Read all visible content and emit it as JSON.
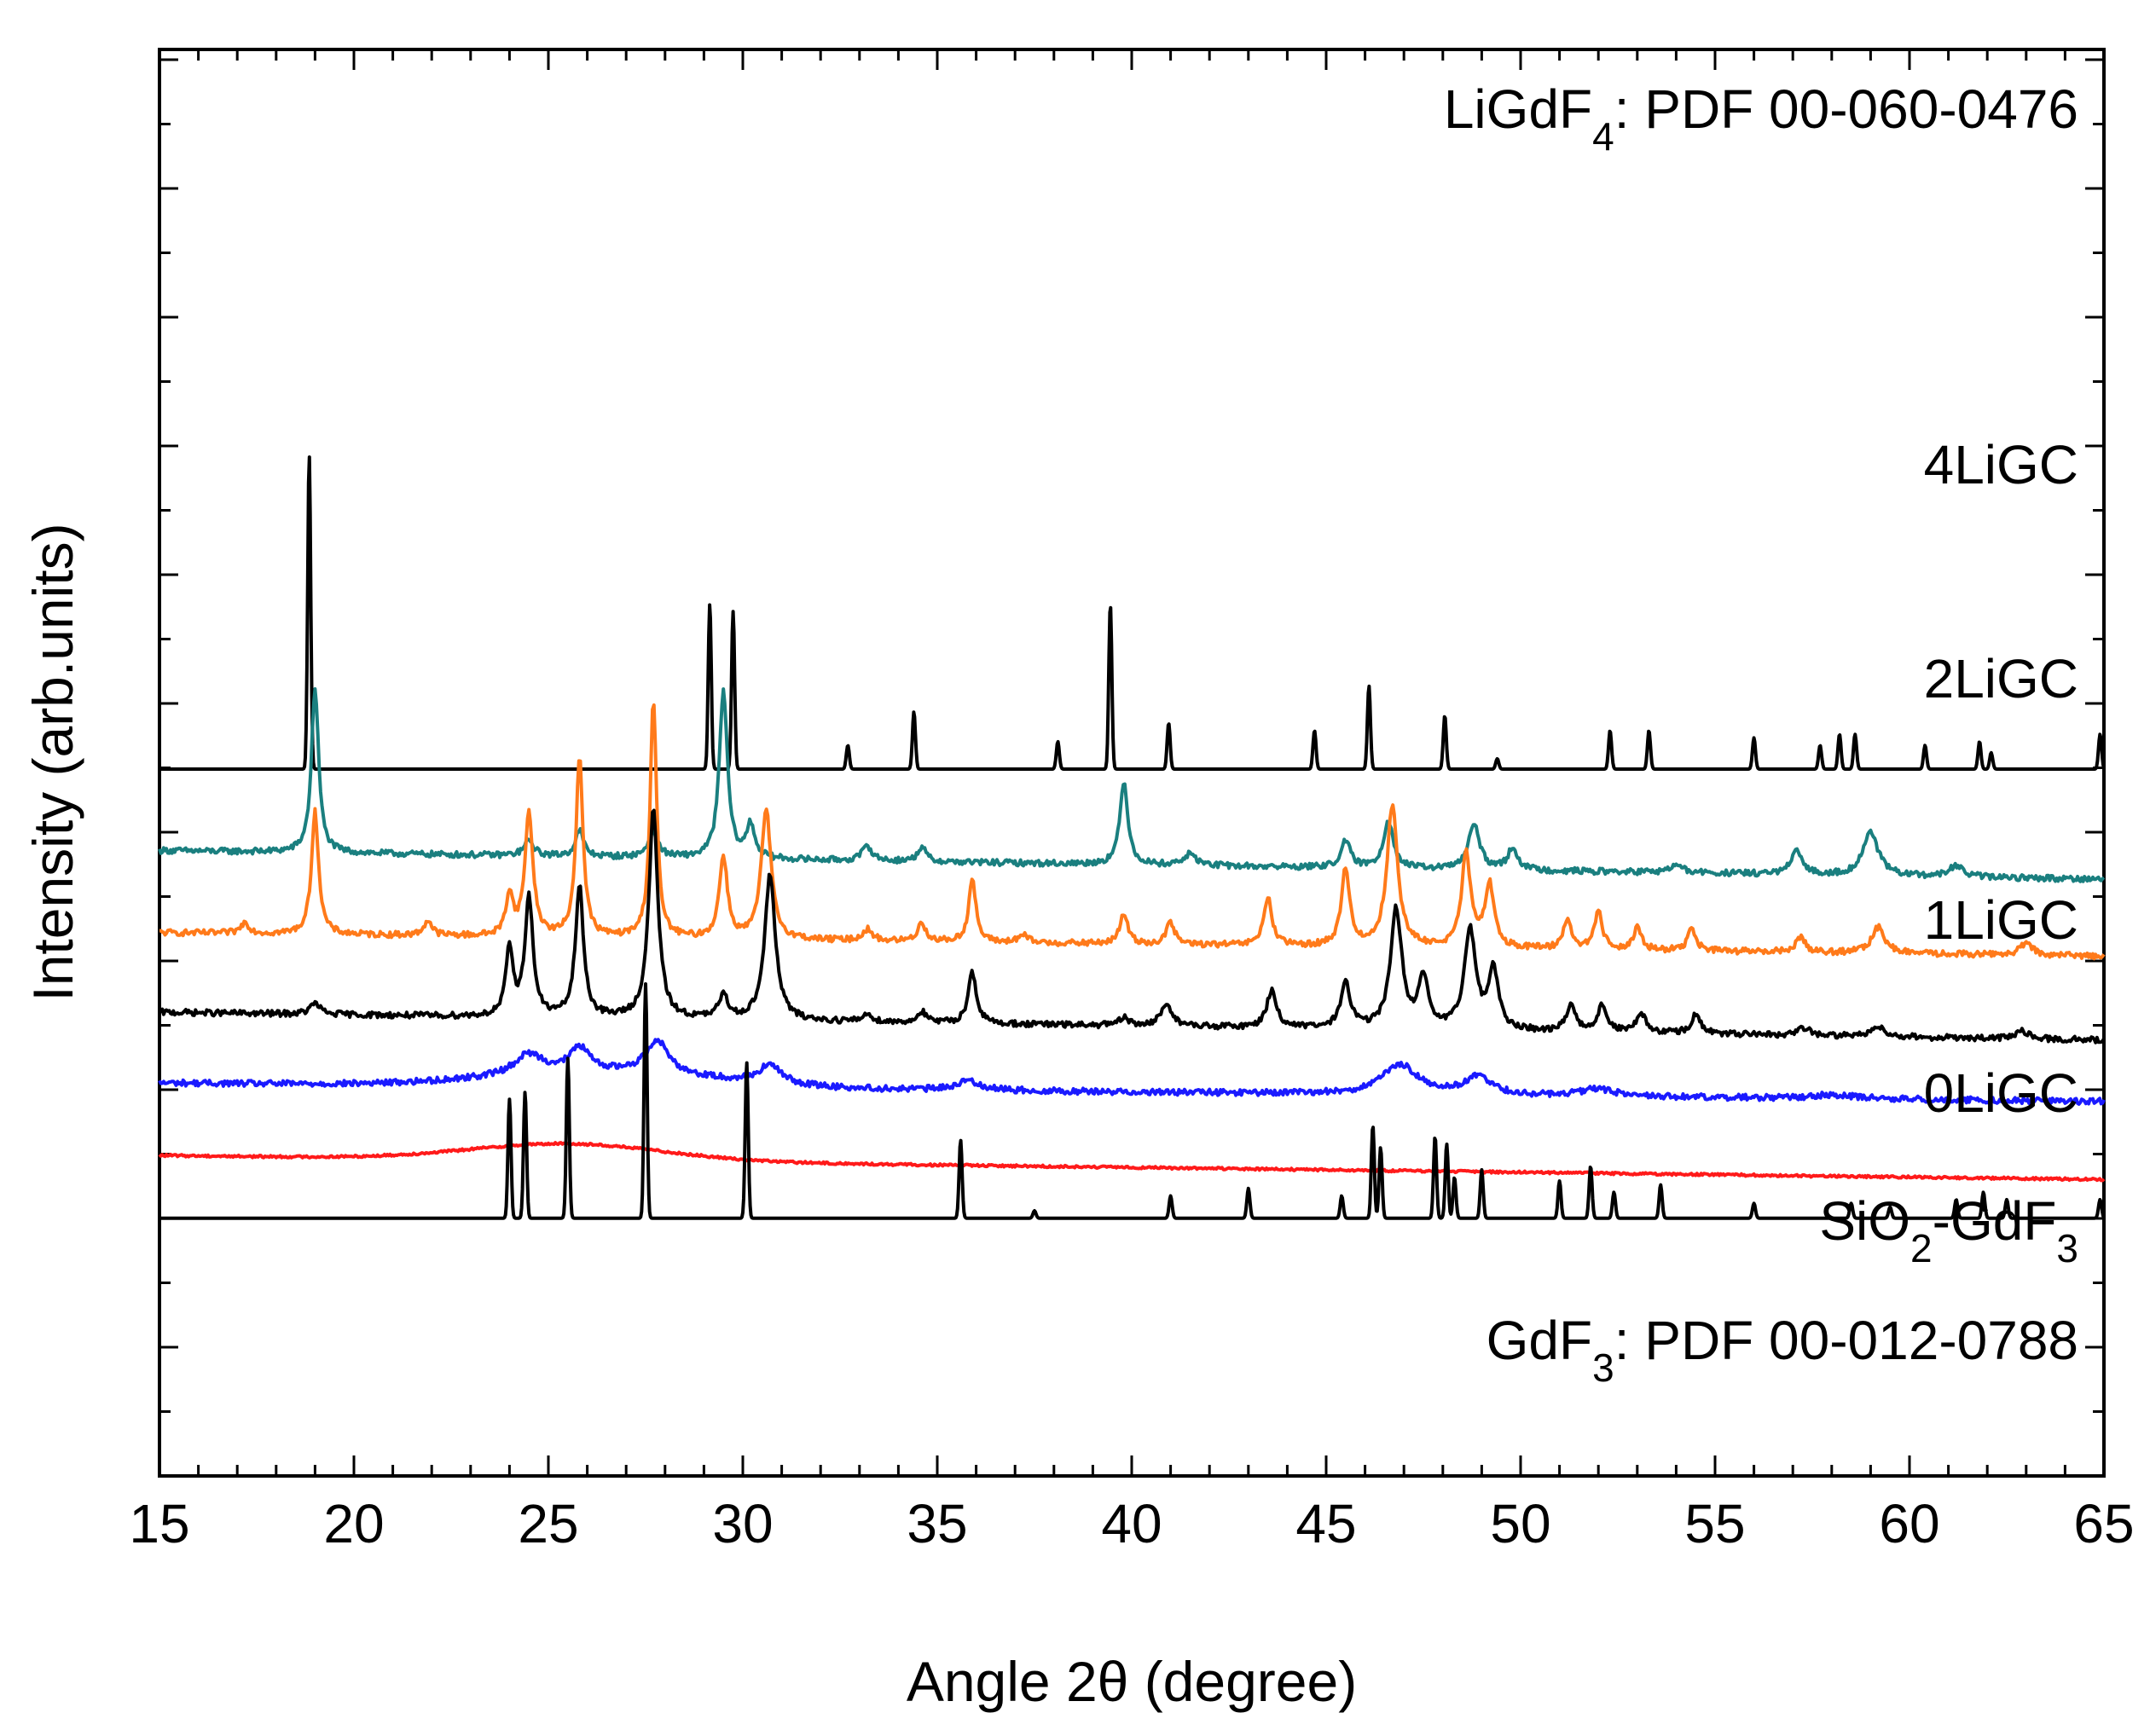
{
  "chart_data": {
    "type": "line",
    "title": "",
    "xlabel": "Angle 2θ (degree)",
    "ylabel": "Intensity (arb.units)",
    "xlim": [
      15,
      65
    ],
    "xticks": [
      15,
      20,
      25,
      30,
      35,
      40,
      45,
      50,
      55,
      60,
      65
    ],
    "yticks_shown": false,
    "series": [
      {
        "name": "LiGdF4",
        "label_main": "LiGdF",
        "label_sub": "4",
        "label_rest": ": PDF 00-060-0476",
        "kind": "reference",
        "color": "#000000",
        "baseline": 0.844,
        "peaks": [
          [
            18.85,
            0.844
          ],
          [
            29.15,
            0.444
          ],
          [
            29.75,
            0.424
          ],
          [
            32.7,
            0.064
          ],
          [
            34.4,
            0.154
          ],
          [
            38.1,
            0.074
          ],
          [
            39.45,
            0.444
          ],
          [
            40.95,
            0.124
          ],
          [
            44.7,
            0.104
          ],
          [
            46.1,
            0.224
          ],
          [
            48.05,
            0.144
          ],
          [
            49.4,
            0.028
          ],
          [
            52.3,
            0.104
          ],
          [
            53.3,
            0.104
          ],
          [
            56.0,
            0.084
          ],
          [
            57.7,
            0.064
          ],
          [
            58.2,
            0.094
          ],
          [
            58.6,
            0.094
          ],
          [
            60.4,
            0.064
          ],
          [
            61.8,
            0.074
          ],
          [
            62.1,
            0.044
          ],
          [
            64.9,
            0.094
          ]
        ],
        "values_note": "stick pattern: [2θ, relative intensity]"
      },
      {
        "name": "4LiGC",
        "label_main": "4LiGC",
        "kind": "measured",
        "color": "#1a7f7f",
        "baseline_start": 0.625,
        "baseline_end": 0.548,
        "peaks": [
          [
            19.0,
            0.445,
            0.22
          ],
          [
            24.5,
            0.04,
            0.3
          ],
          [
            25.8,
            0.07,
            0.25
          ],
          [
            27.7,
            0.07,
            0.3
          ],
          [
            29.5,
            0.45,
            0.25
          ],
          [
            30.2,
            0.09,
            0.25
          ],
          [
            33.2,
            0.04,
            0.3
          ],
          [
            34.6,
            0.04,
            0.25
          ],
          [
            39.8,
            0.22,
            0.25
          ],
          [
            41.5,
            0.03,
            0.4
          ],
          [
            45.5,
            0.07,
            0.3
          ],
          [
            46.6,
            0.13,
            0.3
          ],
          [
            48.8,
            0.12,
            0.35
          ],
          [
            49.8,
            0.06,
            0.3
          ],
          [
            54.0,
            0.02,
            0.4
          ],
          [
            57.1,
            0.06,
            0.35
          ],
          [
            59.0,
            0.12,
            0.45
          ],
          [
            61.2,
            0.03,
            0.4
          ]
        ],
        "values_note": "peaks: [2θ, height, width]"
      },
      {
        "name": "2LiGC",
        "label_main": "2LiGC",
        "kind": "measured",
        "color": "#ff7a1a",
        "baseline_start": 0.404,
        "baseline_end": 0.341,
        "peaks": [
          [
            17.2,
            0.03,
            0.25
          ],
          [
            19.0,
            0.33,
            0.22
          ],
          [
            21.9,
            0.04,
            0.25
          ],
          [
            24.0,
            0.11,
            0.22
          ],
          [
            24.5,
            0.33,
            0.25
          ],
          [
            25.8,
            0.48,
            0.22
          ],
          [
            27.7,
            0.64,
            0.2
          ],
          [
            29.5,
            0.22,
            0.25
          ],
          [
            30.6,
            0.35,
            0.3
          ],
          [
            33.2,
            0.03,
            0.3
          ],
          [
            34.6,
            0.05,
            0.25
          ],
          [
            35.9,
            0.17,
            0.22
          ],
          [
            37.2,
            0.02,
            0.3
          ],
          [
            39.8,
            0.08,
            0.25
          ],
          [
            41.0,
            0.06,
            0.25
          ],
          [
            43.5,
            0.13,
            0.25
          ],
          [
            45.5,
            0.21,
            0.25
          ],
          [
            46.7,
            0.38,
            0.33
          ],
          [
            48.6,
            0.25,
            0.28
          ],
          [
            49.2,
            0.17,
            0.28
          ],
          [
            51.2,
            0.08,
            0.25
          ],
          [
            52.0,
            0.1,
            0.25
          ],
          [
            53.0,
            0.06,
            0.25
          ],
          [
            54.4,
            0.06,
            0.25
          ],
          [
            57.2,
            0.04,
            0.3
          ],
          [
            59.2,
            0.07,
            0.4
          ],
          [
            63.0,
            0.03,
            0.4
          ]
        ],
        "values_note": "peaks: [2θ, height, width]"
      },
      {
        "name": "1LiGC",
        "label_main": "1LiGC",
        "kind": "measured",
        "color": "#000000",
        "baseline_start": 0.19,
        "baseline_end": 0.115,
        "peaks": [
          [
            19.0,
            0.03,
            0.3
          ],
          [
            24.0,
            0.18,
            0.22
          ],
          [
            24.5,
            0.32,
            0.25
          ],
          [
            25.8,
            0.35,
            0.25
          ],
          [
            27.7,
            0.56,
            0.28
          ],
          [
            29.5,
            0.06,
            0.3
          ],
          [
            30.7,
            0.39,
            0.33
          ],
          [
            33.2,
            0.02,
            0.3
          ],
          [
            34.6,
            0.03,
            0.25
          ],
          [
            35.9,
            0.14,
            0.25
          ],
          [
            39.8,
            0.02,
            0.3
          ],
          [
            40.9,
            0.06,
            0.35
          ],
          [
            43.6,
            0.1,
            0.3
          ],
          [
            45.5,
            0.12,
            0.3
          ],
          [
            46.8,
            0.32,
            0.35
          ],
          [
            47.5,
            0.13,
            0.3
          ],
          [
            48.7,
            0.27,
            0.35
          ],
          [
            49.3,
            0.16,
            0.3
          ],
          [
            51.3,
            0.07,
            0.3
          ],
          [
            52.1,
            0.07,
            0.3
          ],
          [
            53.1,
            0.05,
            0.3
          ],
          [
            54.5,
            0.05,
            0.3
          ],
          [
            57.3,
            0.02,
            0.4
          ],
          [
            59.2,
            0.03,
            0.4
          ],
          [
            62.9,
            0.02,
            0.4
          ]
        ],
        "values_note": "peaks: [2θ, height, width]"
      },
      {
        "name": "0LiGC",
        "label_main": "0LiGC",
        "kind": "measured",
        "color": "#1a1aff",
        "baseline_start": 0.0,
        "baseline_end": -0.05,
        "peaks": [
          [
            24.5,
            0.055,
            0.9
          ],
          [
            25.8,
            0.065,
            0.6
          ],
          [
            27.8,
            0.09,
            0.7
          ],
          [
            30.7,
            0.05,
            0.7
          ],
          [
            35.8,
            0.025,
            0.8
          ],
          [
            46.9,
            0.08,
            1.1
          ],
          [
            48.9,
            0.05,
            0.8
          ],
          [
            52.0,
            0.02,
            1.0
          ],
          [
            58.0,
            0.01,
            1.5
          ]
        ],
        "hump": [
          26.5,
          0.04,
          4.0
        ],
        "values_note": "peaks: [2θ, height, width]"
      },
      {
        "name": "SiO2-GdF3",
        "label_main": "SiO",
        "label_sub": "2",
        "label_rest": "-GdF",
        "label_sub2": "3",
        "kind": "measured",
        "color": "#ff1a1a",
        "baseline_start": -0.195,
        "baseline_end": -0.26,
        "hump": [
          25.5,
          0.045,
          3.5
        ],
        "peaks": [],
        "values_note": "amorphous halo"
      },
      {
        "name": "GdF3",
        "label_main": "GdF",
        "label_sub": "3",
        "label_rest": ": PDF 00-012-0788",
        "kind": "reference",
        "color": "#000000",
        "baseline": -0.364,
        "peaks": [
          [
            24.0,
            0.32
          ],
          [
            24.4,
            0.34
          ],
          [
            25.5,
            0.43
          ],
          [
            27.5,
            0.63
          ],
          [
            30.1,
            0.42
          ],
          [
            35.6,
            0.21
          ],
          [
            37.5,
            0.02
          ],
          [
            41.0,
            0.06
          ],
          [
            43.0,
            0.08
          ],
          [
            45.4,
            0.06
          ],
          [
            46.2,
            0.25
          ],
          [
            46.4,
            0.19
          ],
          [
            47.8,
            0.22
          ],
          [
            48.1,
            0.2
          ],
          [
            48.3,
            0.11
          ],
          [
            49.0,
            0.13
          ],
          [
            51.0,
            0.1
          ],
          [
            51.8,
            0.14
          ],
          [
            52.4,
            0.07
          ],
          [
            53.6,
            0.09
          ],
          [
            56.0,
            0.04
          ],
          [
            58.5,
            0.04
          ],
          [
            59.5,
            0.03
          ],
          [
            61.2,
            0.05
          ],
          [
            61.9,
            0.07
          ],
          [
            62.5,
            0.05
          ],
          [
            64.9,
            0.05
          ]
        ],
        "values_note": "stick pattern: [2θ, relative intensity]"
      }
    ]
  }
}
